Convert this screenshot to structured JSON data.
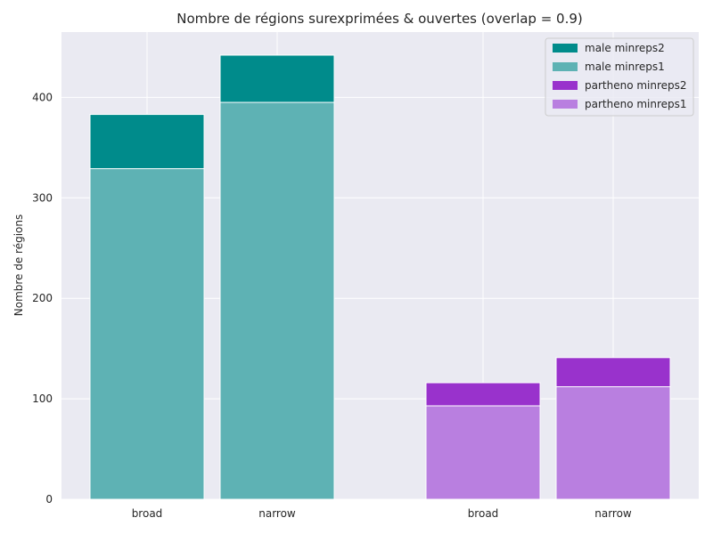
{
  "chart_data": {
    "type": "bar",
    "title": "Nombre de régions surexprimées & ouvertes (overlap = 0.9)",
    "xlabel": "",
    "ylabel": "Nombre de régions",
    "ylim": [
      0,
      465
    ],
    "yticks": [
      0,
      100,
      200,
      300,
      400
    ],
    "grid": true,
    "legend_position": "top-right",
    "categories": [
      "broad",
      "narrow",
      "broad",
      "narrow"
    ],
    "groups": [
      {
        "categories": [
          "broad",
          "narrow"
        ],
        "layers": [
          {
            "name": "male minreps2",
            "values": [
              383,
              442
            ],
            "color": "#008b8b"
          },
          {
            "name": "male minreps1",
            "values": [
              329,
              395
            ],
            "color": "#5eb2b4"
          }
        ]
      },
      {
        "categories": [
          "broad",
          "narrow"
        ],
        "layers": [
          {
            "name": "partheno minreps2",
            "values": [
              116,
              141
            ],
            "color": "#9932cc"
          },
          {
            "name": "partheno minreps1",
            "values": [
              93,
              112
            ],
            "color": "#b97fe0"
          }
        ]
      }
    ],
    "legend": [
      {
        "name": "male minreps2",
        "color": "#008b8b"
      },
      {
        "name": "male minreps1",
        "color": "#5eb2b4"
      },
      {
        "name": "partheno minreps2",
        "color": "#9932cc"
      },
      {
        "name": "partheno minreps1",
        "color": "#b97fe0"
      }
    ]
  }
}
